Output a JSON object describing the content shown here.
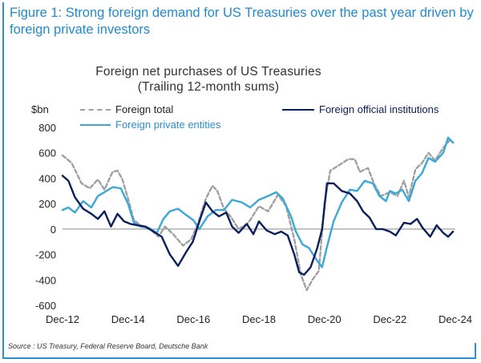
{
  "header": {
    "figure_title": "Figure 1: Strong foreign demand for US Treasuries over the past year driven by foreign private investors",
    "source": "Source : US Treasury, Federal Reserve Board, Deutsche Bank"
  },
  "chart_data": {
    "type": "line",
    "title": "Foreign net purchases of US Treasuries",
    "subtitle": "(Trailing 12-month sums)",
    "ylabel": "$bn",
    "ylim": [
      -600,
      800
    ],
    "yticks": [
      -600,
      -400,
      -200,
      0,
      200,
      400,
      600,
      800
    ],
    "xlim": [
      2012.92,
      2024.92
    ],
    "xticks": [
      {
        "label": "Dec-12",
        "value": 2012.92
      },
      {
        "label": "Dec-14",
        "value": 2014.92
      },
      {
        "label": "Dec-16",
        "value": 2016.92
      },
      {
        "label": "Dec-18",
        "value": 2018.92
      },
      {
        "label": "Dec-20",
        "value": 2020.92
      },
      {
        "label": "Dec-22",
        "value": 2022.92
      },
      {
        "label": "Dec-24",
        "value": 2024.92
      }
    ],
    "legend_position": "top",
    "series": [
      {
        "name": "Foreign total",
        "color": "#a0a0a0",
        "style": "dashed",
        "points": [
          [
            2012.92,
            580
          ],
          [
            2013.2,
            520
          ],
          [
            2013.5,
            360
          ],
          [
            2013.75,
            320
          ],
          [
            2014.0,
            390
          ],
          [
            2014.2,
            310
          ],
          [
            2014.45,
            450
          ],
          [
            2014.6,
            460
          ],
          [
            2014.75,
            390
          ],
          [
            2014.92,
            240
          ],
          [
            2015.1,
            70
          ],
          [
            2015.3,
            30
          ],
          [
            2015.6,
            0
          ],
          [
            2015.85,
            -60
          ],
          [
            2016.05,
            20
          ],
          [
            2016.3,
            -40
          ],
          [
            2016.6,
            -130
          ],
          [
            2016.85,
            -80
          ],
          [
            2017.05,
            40
          ],
          [
            2017.3,
            240
          ],
          [
            2017.5,
            340
          ],
          [
            2017.65,
            300
          ],
          [
            2017.85,
            160
          ],
          [
            2018.05,
            100
          ],
          [
            2018.3,
            0
          ],
          [
            2018.6,
            50
          ],
          [
            2018.92,
            180
          ],
          [
            2019.2,
            140
          ],
          [
            2019.5,
            270
          ],
          [
            2019.75,
            180
          ],
          [
            2020.0,
            -80
          ],
          [
            2020.2,
            -360
          ],
          [
            2020.38,
            -480
          ],
          [
            2020.55,
            -400
          ],
          [
            2020.75,
            -330
          ],
          [
            2020.92,
            200
          ],
          [
            2021.1,
            460
          ],
          [
            2021.35,
            500
          ],
          [
            2021.65,
            550
          ],
          [
            2021.85,
            550
          ],
          [
            2022.0,
            450
          ],
          [
            2022.25,
            480
          ],
          [
            2022.45,
            350
          ],
          [
            2022.65,
            260
          ],
          [
            2022.92,
            290
          ],
          [
            2023.15,
            260
          ],
          [
            2023.35,
            380
          ],
          [
            2023.5,
            250
          ],
          [
            2023.7,
            470
          ],
          [
            2023.9,
            520
          ],
          [
            2024.1,
            600
          ],
          [
            2024.3,
            540
          ],
          [
            2024.55,
            640
          ],
          [
            2024.75,
            700
          ],
          [
            2024.85,
            680
          ]
        ]
      },
      {
        "name": "Foreign official institutions",
        "color": "#0b1e5e",
        "style": "solid",
        "points": [
          [
            2012.92,
            420
          ],
          [
            2013.1,
            380
          ],
          [
            2013.3,
            250
          ],
          [
            2013.55,
            160
          ],
          [
            2013.8,
            120
          ],
          [
            2014.0,
            80
          ],
          [
            2014.2,
            140
          ],
          [
            2014.4,
            20
          ],
          [
            2014.6,
            120
          ],
          [
            2014.8,
            60
          ],
          [
            2015.0,
            40
          ],
          [
            2015.2,
            30
          ],
          [
            2015.45,
            20
          ],
          [
            2015.7,
            -20
          ],
          [
            2015.95,
            -60
          ],
          [
            2016.2,
            -200
          ],
          [
            2016.45,
            -290
          ],
          [
            2016.7,
            -180
          ],
          [
            2016.9,
            -100
          ],
          [
            2017.1,
            60
          ],
          [
            2017.3,
            210
          ],
          [
            2017.5,
            140
          ],
          [
            2017.7,
            100
          ],
          [
            2017.92,
            130
          ],
          [
            2018.1,
            20
          ],
          [
            2018.3,
            -30
          ],
          [
            2018.55,
            40
          ],
          [
            2018.75,
            -40
          ],
          [
            2018.92,
            60
          ],
          [
            2019.15,
            -10
          ],
          [
            2019.4,
            -40
          ],
          [
            2019.6,
            -20
          ],
          [
            2019.8,
            -50
          ],
          [
            2020.0,
            -200
          ],
          [
            2020.15,
            -340
          ],
          [
            2020.3,
            -360
          ],
          [
            2020.5,
            -300
          ],
          [
            2020.7,
            -150
          ],
          [
            2020.85,
            0
          ],
          [
            2021.0,
            360
          ],
          [
            2021.2,
            360
          ],
          [
            2021.45,
            300
          ],
          [
            2021.7,
            280
          ],
          [
            2021.92,
            220
          ],
          [
            2022.1,
            140
          ],
          [
            2022.3,
            90
          ],
          [
            2022.5,
            0
          ],
          [
            2022.7,
            0
          ],
          [
            2022.92,
            -20
          ],
          [
            2023.1,
            -50
          ],
          [
            2023.35,
            50
          ],
          [
            2023.55,
            40
          ],
          [
            2023.75,
            80
          ],
          [
            2023.92,
            10
          ],
          [
            2024.15,
            -60
          ],
          [
            2024.35,
            30
          ],
          [
            2024.55,
            -30
          ],
          [
            2024.7,
            -60
          ],
          [
            2024.85,
            -20
          ]
        ]
      },
      {
        "name": "Foreign private entities",
        "color": "#3aa8d8",
        "style": "solid",
        "points": [
          [
            2012.92,
            150
          ],
          [
            2013.1,
            170
          ],
          [
            2013.3,
            130
          ],
          [
            2013.55,
            220
          ],
          [
            2013.8,
            170
          ],
          [
            2014.0,
            260
          ],
          [
            2014.2,
            290
          ],
          [
            2014.45,
            330
          ],
          [
            2014.7,
            320
          ],
          [
            2014.92,
            200
          ],
          [
            2015.1,
            50
          ],
          [
            2015.3,
            20
          ],
          [
            2015.55,
            10
          ],
          [
            2015.8,
            -30
          ],
          [
            2016.0,
            80
          ],
          [
            2016.2,
            140
          ],
          [
            2016.45,
            160
          ],
          [
            2016.7,
            110
          ],
          [
            2016.92,
            70
          ],
          [
            2017.1,
            0
          ],
          [
            2017.35,
            100
          ],
          [
            2017.6,
            150
          ],
          [
            2017.85,
            150
          ],
          [
            2018.1,
            230
          ],
          [
            2018.4,
            210
          ],
          [
            2018.65,
            170
          ],
          [
            2018.92,
            230
          ],
          [
            2019.2,
            260
          ],
          [
            2019.45,
            290
          ],
          [
            2019.65,
            240
          ],
          [
            2019.9,
            100
          ],
          [
            2020.05,
            -20
          ],
          [
            2020.25,
            -120
          ],
          [
            2020.45,
            -150
          ],
          [
            2020.7,
            -250
          ],
          [
            2020.85,
            -300
          ],
          [
            2021.0,
            -140
          ],
          [
            2021.2,
            60
          ],
          [
            2021.45,
            210
          ],
          [
            2021.7,
            310
          ],
          [
            2021.92,
            300
          ],
          [
            2022.15,
            380
          ],
          [
            2022.4,
            360
          ],
          [
            2022.6,
            260
          ],
          [
            2022.8,
            220
          ],
          [
            2022.92,
            300
          ],
          [
            2023.1,
            280
          ],
          [
            2023.3,
            310
          ],
          [
            2023.5,
            220
          ],
          [
            2023.7,
            380
          ],
          [
            2023.9,
            440
          ],
          [
            2024.1,
            560
          ],
          [
            2024.3,
            530
          ],
          [
            2024.55,
            600
          ],
          [
            2024.7,
            720
          ],
          [
            2024.85,
            680
          ]
        ]
      }
    ]
  }
}
